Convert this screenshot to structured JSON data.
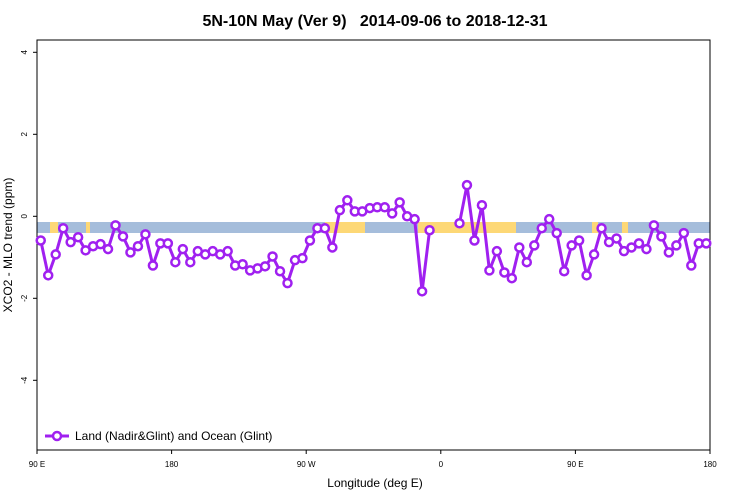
{
  "chart_data": {
    "type": "line",
    "title": "5N-10N May (Ver 9)   2014-09-06 to 2018-12-31",
    "xlabel": "Longitude (deg E)",
    "ylabel": "XCO2 - MLO trend (ppm)",
    "xlim": [
      90,
      540
    ],
    "ylim": [
      -5.7,
      4.3
    ],
    "xticks": [
      {
        "value": 90,
        "label": "90 E"
      },
      180,
      {
        "value": 270,
        "label": "90 W"
      },
      {
        "value": 360,
        "label": "0"
      },
      {
        "value": 450,
        "label": "90 E"
      },
      {
        "value": 540,
        "label": "180"
      }
    ],
    "yticks": [
      -4,
      -2,
      0,
      2,
      4
    ],
    "legend": "bottom-left",
    "x": [
      92.5,
      97.5,
      102.5,
      107.5,
      112.5,
      117.5,
      122.5,
      127.5,
      132.5,
      137.5,
      142.5,
      147.5,
      152.5,
      157.5,
      162.5,
      167.5,
      172.5,
      177.5,
      182.5,
      187.5,
      192.5,
      197.5,
      202.5,
      207.5,
      212.5,
      217.5,
      222.5,
      227.5,
      232.5,
      237.5,
      242.5,
      247.5,
      252.5,
      257.5,
      262.5,
      267.5,
      272.5,
      277.5,
      282.5,
      287.5,
      292.5,
      297.5,
      302.5,
      307.5,
      312.5,
      317.5,
      322.5,
      327.5,
      332.5,
      337.5,
      342.5,
      347.5,
      352.5,
      357.5,
      362.5,
      367.5,
      372.5,
      377.5,
      382.5,
      387.5,
      392.5,
      397.5,
      402.5,
      407.5,
      412.5,
      417.5,
      422.5,
      427.5,
      432.5,
      437.5,
      442.5,
      447.5,
      452.5,
      457.5,
      462.5,
      467.5,
      472.5,
      477.5,
      482.5,
      487.5,
      492.5,
      497.5,
      502.5,
      507.5,
      512.5,
      517.5,
      522.5,
      527.5,
      532.5,
      537.5
    ],
    "series": [
      {
        "name": "Land (Nadir&Glint) and Ocean (Glint)",
        "color": "#a020f0",
        "values": [
          -0.59,
          -1.44,
          -0.93,
          -0.29,
          -0.63,
          -0.51,
          -0.83,
          -0.73,
          -0.68,
          -0.8,
          -0.22,
          -0.49,
          -0.88,
          -0.73,
          -0.44,
          -1.2,
          -0.66,
          -0.66,
          -1.12,
          -0.8,
          -1.12,
          -0.85,
          -0.93,
          -0.85,
          -0.93,
          -0.85,
          -1.2,
          -1.17,
          -1.32,
          -1.27,
          -1.22,
          -0.98,
          -1.34,
          -1.63,
          -1.07,
          -1.02,
          -0.59,
          -0.29,
          -0.29,
          -0.76,
          0.15,
          0.39,
          0.12,
          0.12,
          0.2,
          0.22,
          0.22,
          0.07,
          0.34,
          0,
          -0.07,
          -1.83,
          -0.34,
          null,
          null,
          null,
          -0.17,
          0.76,
          -0.59,
          0.27,
          -1.32,
          -0.85,
          -1.37,
          -1.51,
          -0.76,
          -1.12,
          -0.71,
          -0.29,
          -0.07,
          -0.41,
          -1.34,
          -0.71,
          -0.59,
          -1.44,
          -0.93,
          -0.29,
          -0.63,
          -0.54,
          -0.85,
          -0.76,
          -0.66,
          -0.8,
          -0.22,
          -0.49,
          -0.88,
          -0.71,
          -0.41,
          -1.2,
          -0.66,
          -0.66
        ]
      }
    ]
  }
}
